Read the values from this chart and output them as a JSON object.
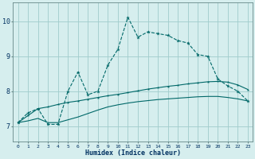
{
  "xlabel": "Humidex (Indice chaleur)",
  "xlim": [
    -0.5,
    23.5
  ],
  "ylim": [
    6.55,
    10.55
  ],
  "xticks": [
    0,
    1,
    2,
    3,
    4,
    5,
    6,
    7,
    8,
    9,
    10,
    11,
    12,
    13,
    14,
    15,
    16,
    17,
    18,
    19,
    20,
    21,
    22,
    23
  ],
  "yticks": [
    7,
    8,
    9,
    10
  ],
  "bg_color": "#d6eeee",
  "grid_color": "#a0cccc",
  "line_color": "#006868",
  "line1_x": [
    0,
    1,
    2,
    3,
    4,
    5,
    6,
    7,
    8,
    9,
    10,
    11,
    12,
    13,
    14,
    15,
    16,
    17,
    18,
    19,
    20,
    21,
    22,
    23
  ],
  "line1_y": [
    7.1,
    7.38,
    7.5,
    7.05,
    7.05,
    8.0,
    8.55,
    7.9,
    8.0,
    8.75,
    9.2,
    10.12,
    9.55,
    9.7,
    9.65,
    9.6,
    9.45,
    9.38,
    9.05,
    9.0,
    8.35,
    8.15,
    8.0,
    7.72
  ],
  "line2_x": [
    0,
    1,
    2,
    3,
    4,
    5,
    6,
    7,
    8,
    9,
    10,
    11,
    12,
    13,
    14,
    15,
    16,
    17,
    18,
    19,
    20,
    21,
    22,
    23
  ],
  "line2_y": [
    7.1,
    7.3,
    7.5,
    7.55,
    7.62,
    7.68,
    7.72,
    7.77,
    7.82,
    7.87,
    7.91,
    7.96,
    8.01,
    8.06,
    8.1,
    8.14,
    8.17,
    8.21,
    8.24,
    8.27,
    8.28,
    8.26,
    8.18,
    8.05
  ],
  "line3_x": [
    0,
    1,
    2,
    3,
    4,
    5,
    6,
    7,
    8,
    9,
    10,
    11,
    12,
    13,
    14,
    15,
    16,
    17,
    18,
    19,
    20,
    21,
    22,
    23
  ],
  "line3_y": [
    7.1,
    7.15,
    7.22,
    7.1,
    7.1,
    7.18,
    7.26,
    7.36,
    7.46,
    7.55,
    7.61,
    7.66,
    7.7,
    7.73,
    7.76,
    7.78,
    7.8,
    7.82,
    7.84,
    7.85,
    7.85,
    7.82,
    7.78,
    7.72
  ]
}
